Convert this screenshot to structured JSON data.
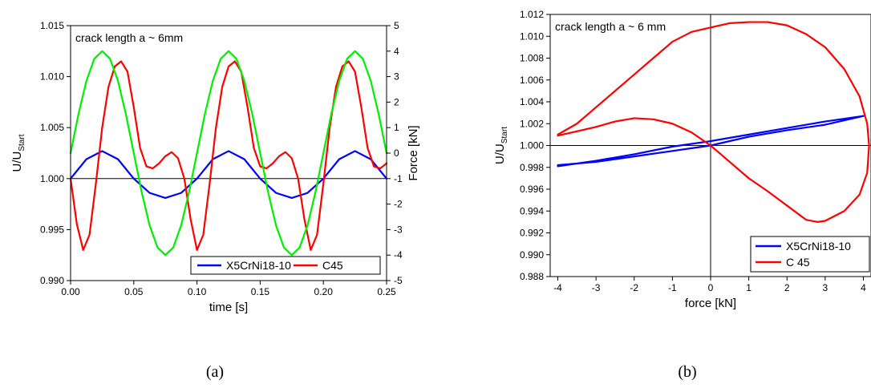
{
  "chart_data": [
    {
      "id": "a",
      "type": "line",
      "caption": "(a)",
      "annotation": "crack length a ~ 6mm",
      "xlabel": "time [s]",
      "ylabel": "U/U",
      "ylabel_sub": "Start",
      "y2label": "Force [kN]",
      "xlim": [
        0,
        0.25
      ],
      "ylim": [
        0.99,
        1.015
      ],
      "y2lim": [
        -5,
        5
      ],
      "xticks": [
        "0.00",
        "0.05",
        "0.10",
        "0.15",
        "0.20",
        "0.25"
      ],
      "yticks": [
        "0.990",
        "0.995",
        "1.000",
        "1.005",
        "1.010",
        "1.015"
      ],
      "y2ticks": [
        "-5",
        "-4",
        "-3",
        "-2",
        "-1",
        "0",
        "1",
        "2",
        "3",
        "4",
        "5"
      ],
      "reference_line_y": 1.0,
      "legend_position": "bottom-right",
      "legend_layout": "horizontal",
      "colors": {
        "X5CrNi18-10": "#0000ff",
        "C45": "#ff0000",
        "force": "#00ee00"
      },
      "series": [
        {
          "name": "X5CrNi18-10",
          "axis": "left",
          "x": [
            0.0,
            0.0125,
            0.025,
            0.0375,
            0.05,
            0.0625,
            0.075,
            0.0875,
            0.1,
            0.1125,
            0.125,
            0.1375,
            0.15,
            0.1625,
            0.175,
            0.1875,
            0.2,
            0.2125,
            0.225,
            0.2375,
            0.25
          ],
          "y": [
            1.0,
            1.0019,
            1.0027,
            1.0019,
            1.0,
            0.9986,
            0.9981,
            0.9986,
            1.0,
            1.0019,
            1.0027,
            1.0019,
            1.0,
            0.9986,
            0.9981,
            0.9986,
            1.0,
            1.0019,
            1.0027,
            1.0019,
            1.0
          ]
        },
        {
          "name": "C45",
          "axis": "left",
          "x": [
            0.0,
            0.005,
            0.01,
            0.015,
            0.02,
            0.025,
            0.03,
            0.035,
            0.04,
            0.045,
            0.05,
            0.055,
            0.06,
            0.065,
            0.07,
            0.075,
            0.08,
            0.085,
            0.09,
            0.095,
            0.1,
            0.105,
            0.11,
            0.115,
            0.12,
            0.125,
            0.13,
            0.135,
            0.14,
            0.145,
            0.15,
            0.155,
            0.16,
            0.165,
            0.17,
            0.175,
            0.18,
            0.185,
            0.19,
            0.195,
            0.2,
            0.205,
            0.21,
            0.215,
            0.22,
            0.225,
            0.23,
            0.235,
            0.24,
            0.245,
            0.25
          ],
          "y": [
            1.0,
            0.9955,
            0.993,
            0.9945,
            0.9995,
            1.005,
            1.009,
            1.011,
            1.0115,
            1.0105,
            1.007,
            1.003,
            1.0012,
            1.001,
            1.0015,
            1.0022,
            1.0026,
            1.002,
            1.0,
            0.996,
            0.993,
            0.9945,
            0.9995,
            1.005,
            1.009,
            1.011,
            1.0115,
            1.0105,
            1.007,
            1.003,
            1.0012,
            1.001,
            1.0015,
            1.0022,
            1.0026,
            1.002,
            1.0,
            0.996,
            0.993,
            0.9945,
            0.9995,
            1.005,
            1.009,
            1.011,
            1.0115,
            1.0105,
            1.007,
            1.003,
            1.0012,
            1.001,
            1.0015
          ]
        },
        {
          "name": "Force",
          "axis": "right",
          "x": [
            0.0,
            0.00625,
            0.0125,
            0.01875,
            0.025,
            0.03125,
            0.0375,
            0.04375,
            0.05,
            0.05625,
            0.0625,
            0.06875,
            0.075,
            0.08125,
            0.0875,
            0.09375,
            0.1,
            0.10625,
            0.1125,
            0.11875,
            0.125,
            0.13125,
            0.1375,
            0.14375,
            0.15,
            0.15625,
            0.1625,
            0.16875,
            0.175,
            0.18125,
            0.1875,
            0.19375,
            0.2,
            0.20625,
            0.2125,
            0.21875,
            0.225,
            0.23125,
            0.2375,
            0.24375,
            0.25
          ],
          "y": [
            0.0,
            1.53,
            2.83,
            3.7,
            4.0,
            3.7,
            2.83,
            1.53,
            0.0,
            -1.53,
            -2.83,
            -3.7,
            -4.0,
            -3.7,
            -2.83,
            -1.53,
            0.0,
            1.53,
            2.83,
            3.7,
            4.0,
            3.7,
            2.83,
            1.53,
            0.0,
            -1.53,
            -2.83,
            -3.7,
            -4.0,
            -3.7,
            -2.83,
            -1.53,
            0.0,
            1.53,
            2.83,
            3.7,
            4.0,
            3.7,
            2.83,
            1.53,
            0.0
          ]
        }
      ]
    },
    {
      "id": "b",
      "type": "line",
      "caption": "(b)",
      "annotation": "crack length a ~ 6 mm",
      "xlabel": "force [kN]",
      "ylabel": "U/U",
      "ylabel_sub": "Start",
      "xlim": [
        -4.2,
        4.2
      ],
      "ylim": [
        0.988,
        1.012
      ],
      "xticks": [
        "-4",
        "-3",
        "-2",
        "-1",
        "0",
        "1",
        "2",
        "3",
        "4"
      ],
      "yticks": [
        "0.988",
        "0.990",
        "0.992",
        "0.994",
        "0.996",
        "0.998",
        "1.000",
        "1.002",
        "1.004",
        "1.006",
        "1.008",
        "1.010",
        "1.012"
      ],
      "reference_line_x": 0,
      "reference_line_y": 1.0,
      "legend_position": "bottom-right",
      "legend_layout": "vertical",
      "colors": {
        "X5CrNi18-10": "#0000ff",
        "C 45": "#ff0000"
      },
      "series": [
        {
          "name": "X5CrNi18-10",
          "x": [
            -4.0,
            -3.0,
            -2.0,
            -1.0,
            0.0,
            1.0,
            2.0,
            3.0,
            4.0,
            3.0,
            2.0,
            1.0,
            0.0,
            -1.0,
            -2.0,
            -3.0,
            -4.0
          ],
          "y": [
            0.9982,
            0.9985,
            0.999,
            0.9995,
            1.0,
            1.0008,
            1.0014,
            1.0019,
            1.0027,
            1.0022,
            1.0016,
            1.001,
            1.0004,
            0.9999,
            0.9992,
            0.9986,
            0.9981
          ]
        },
        {
          "name": "C 45",
          "x": [
            -4.0,
            -3.5,
            -3.0,
            -2.5,
            -2.0,
            -1.5,
            -1.0,
            -0.5,
            0.0,
            0.5,
            1.0,
            1.5,
            2.0,
            2.5,
            3.0,
            3.5,
            3.9,
            4.1,
            4.15,
            4.1,
            3.9,
            3.5,
            3.0,
            2.8,
            2.5,
            2.0,
            1.5,
            1.0,
            0.5,
            0.0,
            -0.5,
            -1.0,
            -1.5,
            -2.0,
            -2.5,
            -3.0,
            -3.5,
            -4.0
          ],
          "y": [
            1.001,
            1.002,
            1.0035,
            1.005,
            1.0065,
            1.008,
            1.0095,
            1.0104,
            1.0108,
            1.0112,
            1.0113,
            1.0113,
            1.011,
            1.0102,
            1.009,
            1.007,
            1.0045,
            1.002,
            1.0,
            0.9975,
            0.9955,
            0.994,
            0.9931,
            0.993,
            0.9932,
            0.9945,
            0.9958,
            0.997,
            0.9985,
            1.0,
            1.0012,
            1.002,
            1.0024,
            1.0025,
            1.0022,
            1.0017,
            1.0013,
            1.0009
          ]
        }
      ]
    }
  ]
}
